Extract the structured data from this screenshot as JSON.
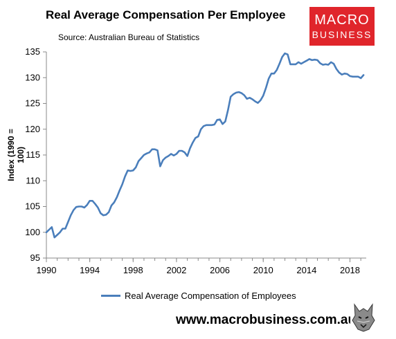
{
  "header": {
    "title": "Real Average Compensation Per Employee",
    "source": "Source: Australian Bureau of Statistics"
  },
  "logo": {
    "line1": "MACRO",
    "line2": "BUSINESS"
  },
  "footer": {
    "url": "www.macrobusiness.com.au"
  },
  "colors": {
    "series": "#4a7ebb",
    "brand": "#e0252b"
  },
  "chart_data": {
    "type": "line",
    "title": "Real Average Compensation Per Employee",
    "ylabel": "Index (1990 = 100)",
    "xlabel": "",
    "xlim": [
      1990,
      2019.5
    ],
    "ylim": [
      95,
      135
    ],
    "xticks": [
      1990,
      1994,
      1998,
      2002,
      2006,
      2010,
      2014,
      2018
    ],
    "yticks": [
      95,
      100,
      105,
      110,
      115,
      120,
      125,
      130,
      135
    ],
    "grid": false,
    "legend_position": "bottom",
    "series": [
      {
        "name": "Real Average Compensation of Employees",
        "x": [
          1990.0,
          1990.25,
          1990.5,
          1990.75,
          1991.0,
          1991.25,
          1991.5,
          1991.75,
          1992.0,
          1992.25,
          1992.5,
          1992.75,
          1993.0,
          1993.25,
          1993.5,
          1993.75,
          1994.0,
          1994.25,
          1994.5,
          1994.75,
          1995.0,
          1995.25,
          1995.5,
          1995.75,
          1996.0,
          1996.25,
          1996.5,
          1996.75,
          1997.0,
          1997.25,
          1997.5,
          1997.75,
          1998.0,
          1998.25,
          1998.5,
          1998.75,
          1999.0,
          1999.25,
          1999.5,
          1999.75,
          2000.0,
          2000.25,
          2000.5,
          2000.75,
          2001.0,
          2001.25,
          2001.5,
          2001.75,
          2002.0,
          2002.25,
          2002.5,
          2002.75,
          2003.0,
          2003.25,
          2003.5,
          2003.75,
          2004.0,
          2004.25,
          2004.5,
          2004.75,
          2005.0,
          2005.25,
          2005.5,
          2005.75,
          2006.0,
          2006.25,
          2006.5,
          2006.75,
          2007.0,
          2007.25,
          2007.5,
          2007.75,
          2008.0,
          2008.25,
          2008.5,
          2008.75,
          2009.0,
          2009.25,
          2009.5,
          2009.75,
          2010.0,
          2010.25,
          2010.5,
          2010.75,
          2011.0,
          2011.25,
          2011.5,
          2011.75,
          2012.0,
          2012.25,
          2012.5,
          2012.75,
          2013.0,
          2013.25,
          2013.5,
          2013.75,
          2014.0,
          2014.25,
          2014.5,
          2014.75,
          2015.0,
          2015.25,
          2015.5,
          2015.75,
          2016.0,
          2016.25,
          2016.5,
          2016.75,
          2017.0,
          2017.25,
          2017.5,
          2017.75,
          2018.0,
          2018.25,
          2018.5,
          2018.75,
          2019.0,
          2019.25
        ],
        "values": [
          100.0,
          100.5,
          101.0,
          99.0,
          99.5,
          100.0,
          100.7,
          100.7,
          102.0,
          103.3,
          104.3,
          104.9,
          105.0,
          105.0,
          104.8,
          105.3,
          106.1,
          106.1,
          105.5,
          104.8,
          103.7,
          103.3,
          103.4,
          103.9,
          105.2,
          105.8,
          106.8,
          108.1,
          109.3,
          110.8,
          112.0,
          111.9,
          112.0,
          112.6,
          113.8,
          114.4,
          115.0,
          115.3,
          115.5,
          116.1,
          116.1,
          115.9,
          112.8,
          114.0,
          114.5,
          114.8,
          115.2,
          114.9,
          115.2,
          115.8,
          115.8,
          115.5,
          114.8,
          116.3,
          117.4,
          118.3,
          118.6,
          120.0,
          120.6,
          120.8,
          120.8,
          120.8,
          120.9,
          121.8,
          121.9,
          121.0,
          121.5,
          123.7,
          126.3,
          126.8,
          127.1,
          127.2,
          127.0,
          126.6,
          125.9,
          126.1,
          125.8,
          125.4,
          125.1,
          125.6,
          126.5,
          128.0,
          129.8,
          130.8,
          130.8,
          131.5,
          132.7,
          134.0,
          134.7,
          134.5,
          132.6,
          132.6,
          132.6,
          133.0,
          132.7,
          133.0,
          133.3,
          133.6,
          133.4,
          133.5,
          133.4,
          132.8,
          132.5,
          132.6,
          132.5,
          133.0,
          132.7,
          131.7,
          131.0,
          130.6,
          130.8,
          130.7,
          130.3,
          130.2,
          130.2,
          130.2,
          129.9,
          130.5
        ]
      }
    ]
  }
}
